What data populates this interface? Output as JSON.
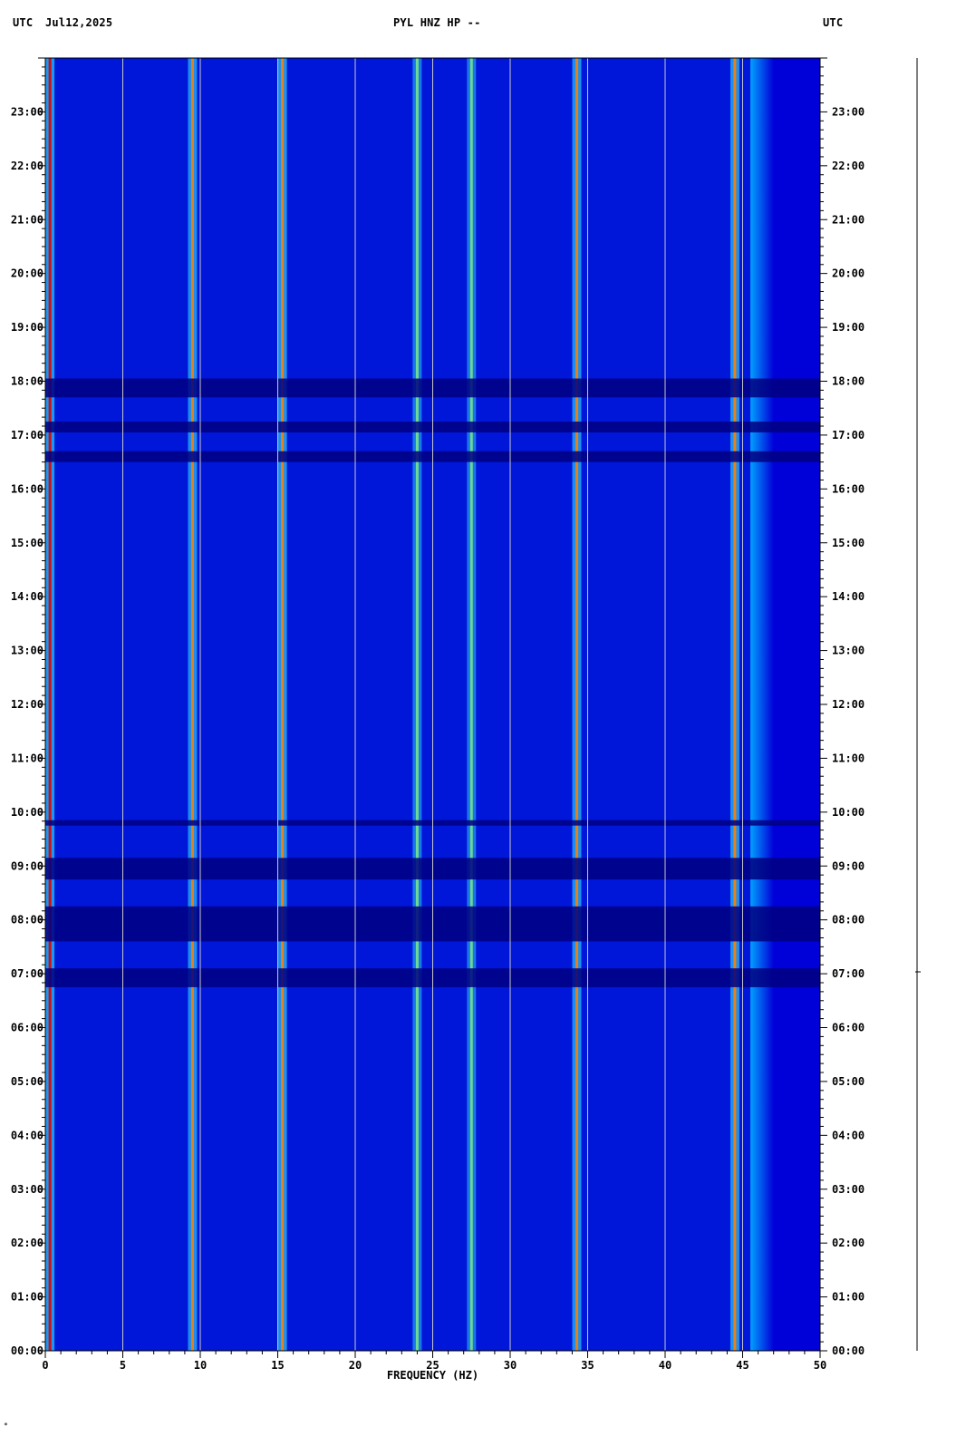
{
  "header": {
    "left_tz": "UTC",
    "date": "Jul12,2025",
    "station": "PYL HNZ HP --",
    "right_tz": "UTC"
  },
  "chart_data": {
    "type": "heatmap",
    "title": "PYL HNZ HP --",
    "xlabel": "FREQUENCY (HZ)",
    "ylabel": "",
    "xlim": [
      0,
      50
    ],
    "ylim_hours": [
      0,
      24
    ],
    "x_ticks": [
      0,
      5,
      10,
      15,
      20,
      25,
      30,
      35,
      40,
      45,
      50
    ],
    "y_tick_labels": [
      "00:00",
      "01:00",
      "02:00",
      "03:00",
      "04:00",
      "05:00",
      "06:00",
      "07:00",
      "08:00",
      "09:00",
      "10:00",
      "11:00",
      "12:00",
      "13:00",
      "14:00",
      "15:00",
      "16:00",
      "17:00",
      "18:00",
      "19:00",
      "20:00",
      "21:00",
      "22:00",
      "23:00"
    ],
    "colormap": [
      "#000080",
      "#0000d8",
      "#0030ff",
      "#00a0ff",
      "#30e0ff",
      "#90ff70",
      "#ffff00",
      "#ff8000",
      "#e00000"
    ],
    "background_color": "#0000b8",
    "rolloff_start_hz": 45.5,
    "spectral_lines": [
      {
        "hz": 0.3,
        "level": 0.95
      },
      {
        "hz": 9.5,
        "level": 0.75
      },
      {
        "hz": 15.3,
        "level": 0.85
      },
      {
        "hz": 24,
        "level": 0.45
      },
      {
        "hz": 27.5,
        "level": 0.4
      },
      {
        "hz": 34.3,
        "level": 0.8
      },
      {
        "hz": 44.5,
        "level": 0.85
      }
    ],
    "quiet_bands_hours": [
      [
        16.5,
        16.7
      ],
      [
        17.05,
        17.25
      ],
      [
        17.7,
        18.05
      ],
      [
        8.75,
        9.15
      ],
      [
        7.6,
        8.25
      ],
      [
        6.75,
        7.1
      ],
      [
        9.75,
        9.85
      ]
    ],
    "vertical_gridlines_hz": [
      5,
      10,
      15,
      20,
      25,
      30,
      35,
      40,
      45
    ]
  }
}
